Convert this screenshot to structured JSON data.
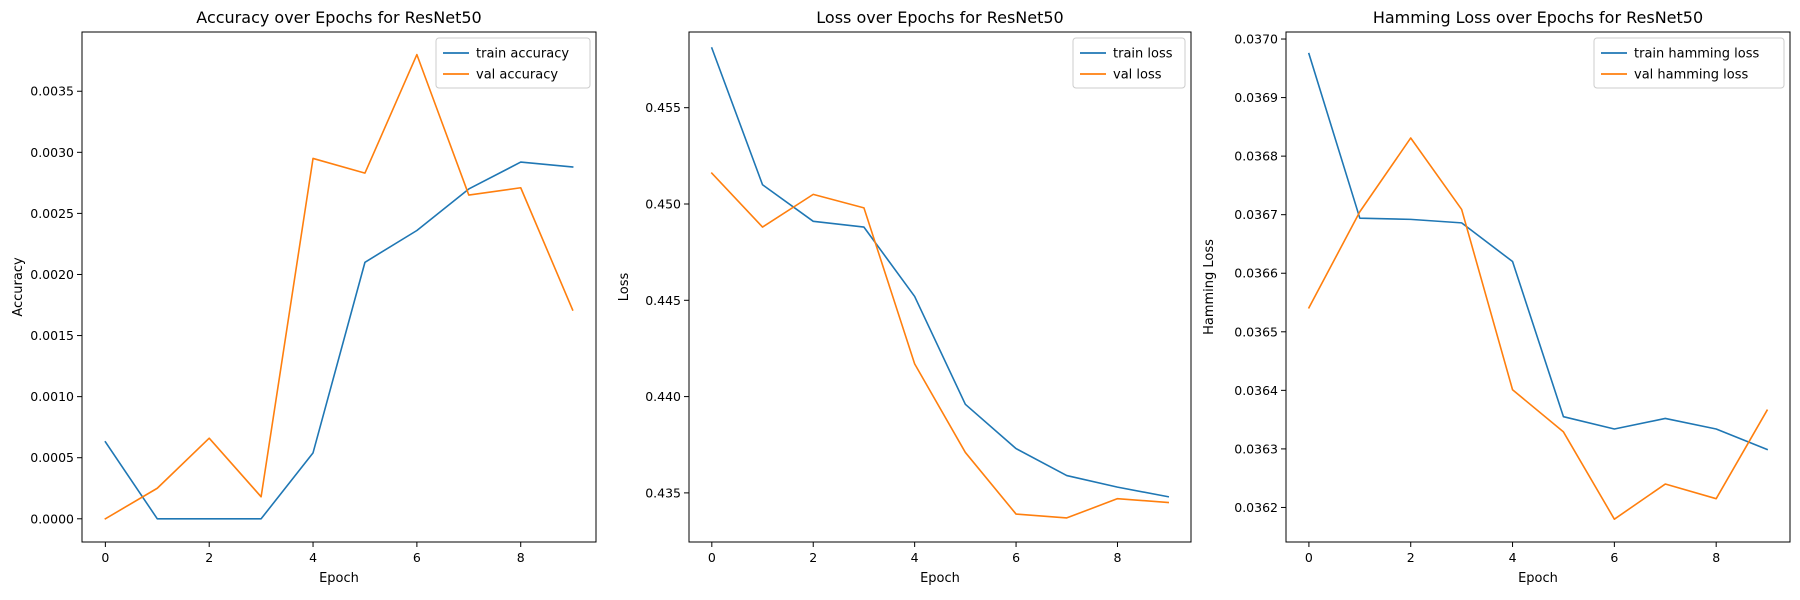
{
  "figure": {
    "background": "#ffffff"
  },
  "colors": {
    "train": "#1f77b4",
    "val": "#ff7f0e"
  },
  "chart_data": [
    {
      "type": "line",
      "title": "Accuracy over Epochs for ResNet50",
      "xlabel": "Epoch",
      "ylabel": "Accuracy",
      "legend": "top-right",
      "grid": false,
      "x": [
        0,
        1,
        2,
        3,
        4,
        5,
        6,
        7,
        8,
        9
      ],
      "xlim": [
        -0.45,
        9.45
      ],
      "ylim": [
        -0.00019,
        0.003985
      ],
      "xticks": [
        0,
        2,
        4,
        6,
        8
      ],
      "xtick_labels": [
        "0",
        "2",
        "4",
        "6",
        "8"
      ],
      "yticks": [
        0.0,
        0.0005,
        0.001,
        0.0015,
        0.002,
        0.0025,
        0.003,
        0.0035
      ],
      "ytick_labels": [
        "0.0000",
        "0.0005",
        "0.0010",
        "0.0015",
        "0.0020",
        "0.0025",
        "0.0030",
        "0.0035"
      ],
      "series": [
        {
          "name": "train accuracy",
          "color": "#1f77b4",
          "values": [
            0.00063,
            0.0,
            0.0,
            0.0,
            0.00054,
            0.0021,
            0.00236,
            0.0027,
            0.00292,
            0.00288
          ]
        },
        {
          "name": "val accuracy",
          "color": "#ff7f0e",
          "values": [
            0.0,
            0.00025,
            0.00066,
            0.00018,
            0.00295,
            0.00283,
            0.0038,
            0.00265,
            0.00271,
            0.00171
          ]
        }
      ]
    },
    {
      "type": "line",
      "title": "Loss over Epochs for ResNet50",
      "xlabel": "Epoch",
      "ylabel": "Loss",
      "legend": "top-right",
      "grid": false,
      "x": [
        0,
        1,
        2,
        3,
        4,
        5,
        6,
        7,
        8,
        9
      ],
      "xlim": [
        -0.45,
        9.45
      ],
      "ylim": [
        0.43245,
        0.45893
      ],
      "xticks": [
        0,
        2,
        4,
        6,
        8
      ],
      "xtick_labels": [
        "0",
        "2",
        "4",
        "6",
        "8"
      ],
      "yticks": [
        0.435,
        0.44,
        0.445,
        0.45,
        0.455
      ],
      "ytick_labels": [
        "0.435",
        "0.440",
        "0.445",
        "0.450",
        "0.455"
      ],
      "series": [
        {
          "name": "train loss",
          "color": "#1f77b4",
          "values": [
            0.4581,
            0.451,
            0.4491,
            0.4488,
            0.4452,
            0.4396,
            0.4373,
            0.4359,
            0.4353,
            0.4348
          ]
        },
        {
          "name": "val loss",
          "color": "#ff7f0e",
          "values": [
            0.4516,
            0.4488,
            0.4505,
            0.4498,
            0.4417,
            0.4371,
            0.4339,
            0.4337,
            0.4347,
            0.4345
          ]
        }
      ]
    },
    {
      "type": "line",
      "title": "Hamming Loss over Epochs for ResNet50",
      "xlabel": "Epoch",
      "ylabel": "Hamming Loss",
      "legend": "top-right",
      "grid": false,
      "x": [
        0,
        1,
        2,
        3,
        4,
        5,
        6,
        7,
        8,
        9
      ],
      "xlim": [
        -0.45,
        9.45
      ],
      "ylim": [
        0.036141,
        0.037012
      ],
      "xticks": [
        0,
        2,
        4,
        6,
        8
      ],
      "xtick_labels": [
        "0",
        "2",
        "4",
        "6",
        "8"
      ],
      "yticks": [
        0.0362,
        0.0363,
        0.0364,
        0.0365,
        0.0366,
        0.0367,
        0.0368,
        0.0369,
        0.037
      ],
      "ytick_labels": [
        "0.0362",
        "0.0363",
        "0.0364",
        "0.0365",
        "0.0366",
        "0.0367",
        "0.0368",
        "0.0369",
        "0.0370"
      ],
      "series": [
        {
          "name": "train hamming loss",
          "color": "#1f77b4",
          "values": [
            0.036975,
            0.036694,
            0.036692,
            0.036686,
            0.03662,
            0.036355,
            0.036334,
            0.036352,
            0.036334,
            0.036299
          ]
        },
        {
          "name": "val hamming loss",
          "color": "#ff7f0e",
          "values": [
            0.036541,
            0.036705,
            0.036831,
            0.036709,
            0.036401,
            0.036329,
            0.03618,
            0.03624,
            0.036215,
            0.036366
          ]
        }
      ]
    }
  ]
}
